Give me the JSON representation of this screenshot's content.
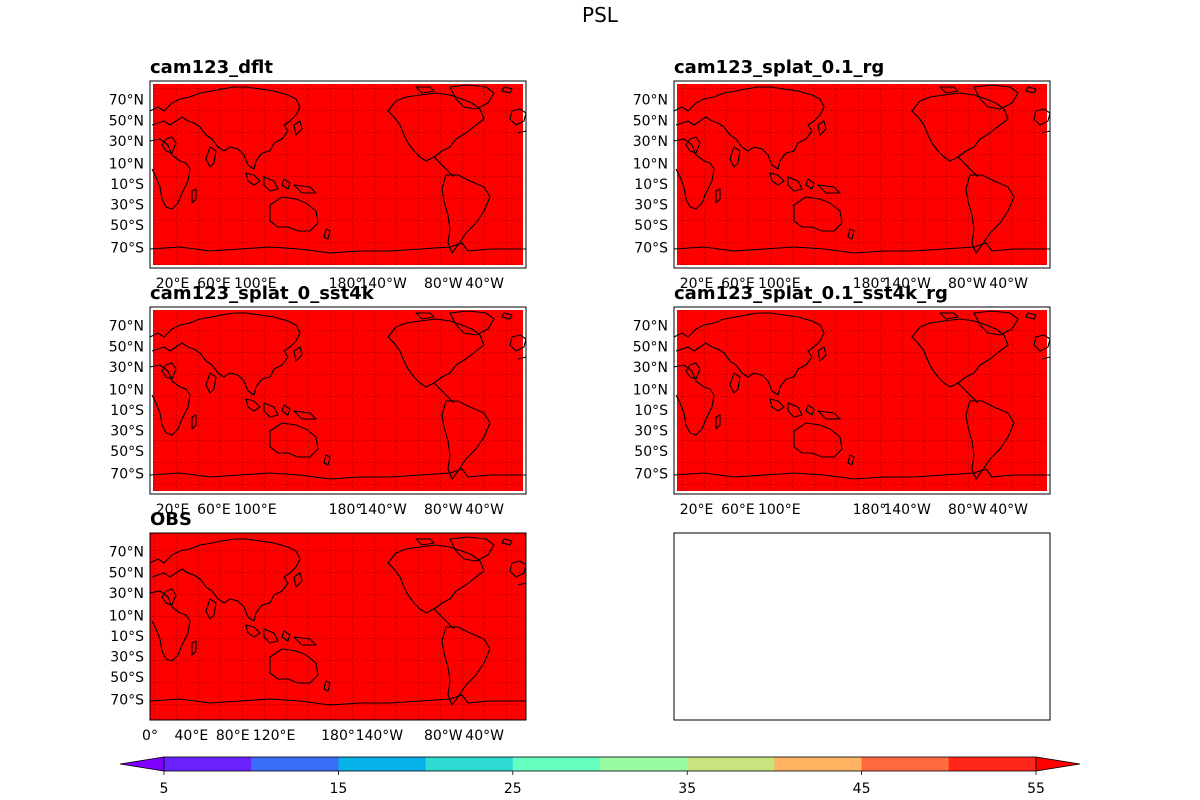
{
  "figure": {
    "title": "PSL"
  },
  "chart_data": [
    {
      "type": "heatmap",
      "title": "cam123_dflt",
      "lat_ticks": [
        "70°N",
        "50°N",
        "30°N",
        "10°N",
        "10°S",
        "30°S",
        "50°S",
        "70°S"
      ],
      "lon_ticks": [
        "20°E",
        "60°E",
        "100°E",
        "180°",
        "140°W",
        "80°W",
        "40°W"
      ],
      "fill_color": "#ff0000",
      "grid": true
    },
    {
      "type": "heatmap",
      "title": "cam123_splat_0.1_rg",
      "lat_ticks": [
        "70°N",
        "50°N",
        "30°N",
        "10°N",
        "10°S",
        "30°S",
        "50°S",
        "70°S"
      ],
      "lon_ticks": [
        "20°E",
        "60°E",
        "100°E",
        "180°",
        "140°W",
        "80°W",
        "40°W"
      ],
      "fill_color": "#ff0000",
      "grid": true
    },
    {
      "type": "heatmap",
      "title": "cam123_splat_0_sst4k",
      "lat_ticks": [
        "70°N",
        "50°N",
        "30°N",
        "10°N",
        "10°S",
        "30°S",
        "50°S",
        "70°S"
      ],
      "lon_ticks": [
        "20°E",
        "60°E",
        "100°E",
        "180°",
        "140°W",
        "80°W",
        "40°W"
      ],
      "fill_color": "#ff0000",
      "grid": true
    },
    {
      "type": "heatmap",
      "title": "cam123_splat_0.1_sst4k_rg",
      "lat_ticks": [
        "70°N",
        "50°N",
        "30°N",
        "10°N",
        "10°S",
        "30°S",
        "50°S",
        "70°S"
      ],
      "lon_ticks": [
        "20°E",
        "60°E",
        "100°E",
        "180°",
        "140°W",
        "80°W",
        "40°W"
      ],
      "fill_color": "#ff0000",
      "grid": true
    },
    {
      "type": "heatmap",
      "title": "OBS",
      "lat_ticks": [
        "70°N",
        "50°N",
        "30°N",
        "10°N",
        "10°S",
        "30°S",
        "50°S",
        "70°S"
      ],
      "lon_ticks": [
        "0°",
        "40°E",
        "80°E",
        "120°E",
        "180°",
        "140°W",
        "80°W",
        "40°W"
      ],
      "fill_color": "#ff0000",
      "grid": true
    },
    {
      "type": "heatmap",
      "title": "",
      "lat_ticks": [],
      "lon_ticks": [],
      "empty": true
    }
  ],
  "colorbar": {
    "min": 5,
    "max": 55,
    "levels": [
      5,
      10,
      15,
      20,
      25,
      30,
      35,
      40,
      45,
      50,
      55
    ],
    "tick_labels": [
      "5",
      "15",
      "25",
      "35",
      "45",
      "55"
    ],
    "tick_values": [
      5,
      15,
      25,
      35,
      45,
      55
    ],
    "under_color": "#8000ff",
    "over_color": "#ff0000",
    "colors": [
      "#6a22ff",
      "#3a6dfa",
      "#08b2e8",
      "#2edcd4",
      "#65ffbf",
      "#98fb9f",
      "#c9e47f",
      "#ffb360",
      "#ff6b3e",
      "#ff2518"
    ]
  }
}
